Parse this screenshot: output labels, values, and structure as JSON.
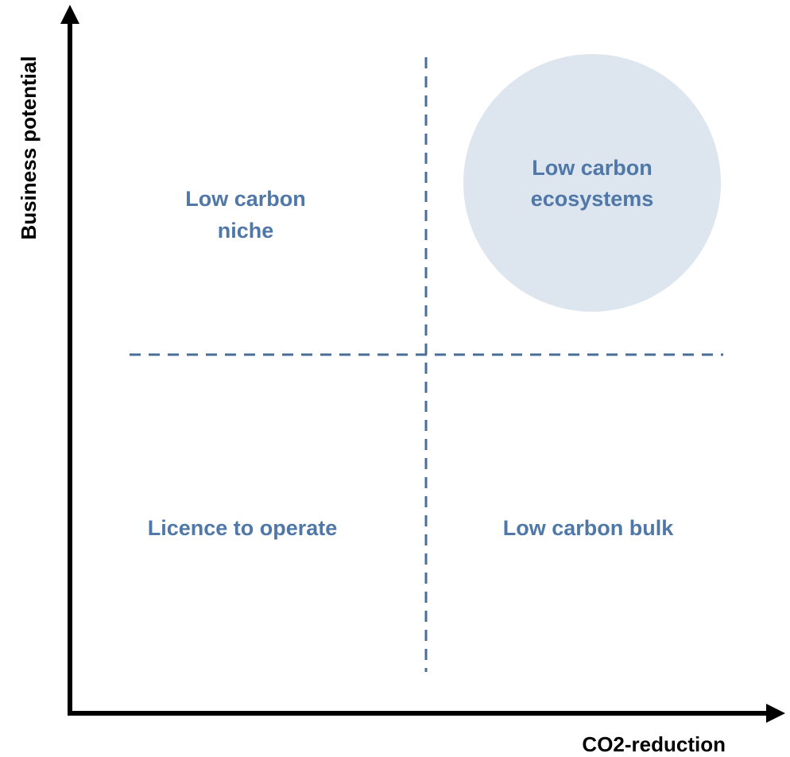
{
  "axes": {
    "y_label": "Business potential",
    "x_label": "CO2-reduction"
  },
  "quadrants": [
    {
      "position": "top-left",
      "lines": [
        "Low carbon",
        "niche"
      ]
    },
    {
      "position": "top-right",
      "lines": [
        "Low carbon",
        "ecosystems"
      ]
    },
    {
      "position": "bottom-left",
      "lines": [
        "Licence to operate"
      ]
    },
    {
      "position": "bottom-right",
      "lines": [
        "Low carbon bulk"
      ]
    }
  ]
}
